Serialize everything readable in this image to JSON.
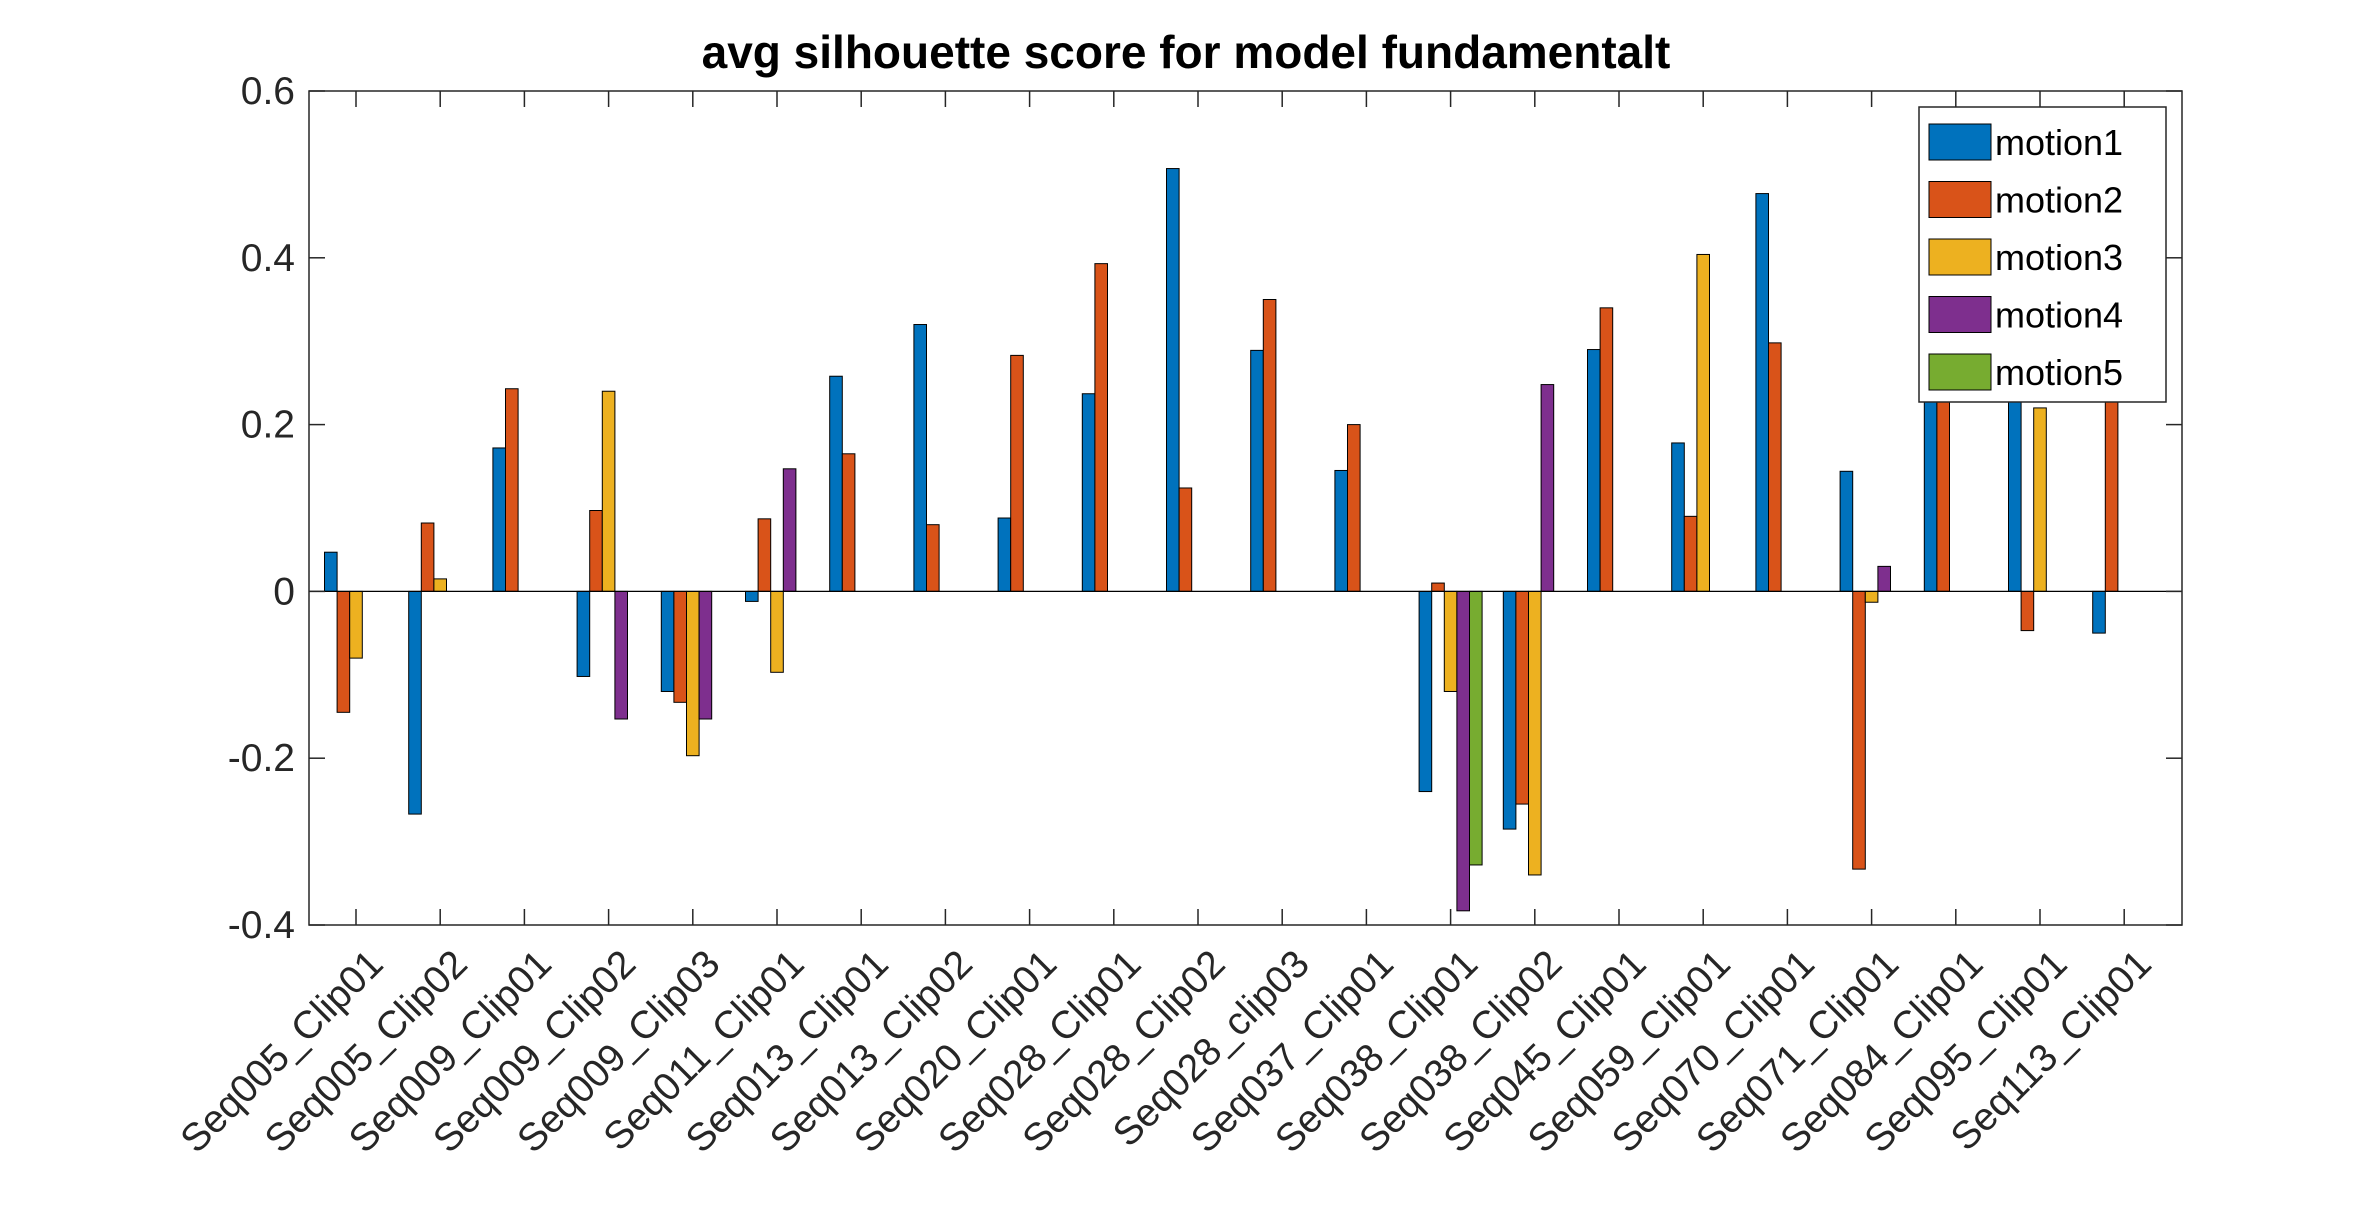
{
  "chart_data": {
    "type": "bar",
    "title": "avg silhouette score for model fundamentalt",
    "xlabel": "",
    "ylabel": "",
    "ylim": [
      -0.4,
      0.6
    ],
    "yticks": [
      -0.4,
      -0.2,
      0,
      0.2,
      0.4,
      0.6
    ],
    "yticklabels": [
      "-0.4",
      "-0.2",
      "0",
      "0.2",
      "0.4",
      "0.6"
    ],
    "categories": [
      "Seq005_Clip01",
      "Seq005_Clip02",
      "Seq009_Clip01",
      "Seq009_Clip02",
      "Seq009_Clip03",
      "Seq011_Clip01",
      "Seq013_Clip01",
      "Seq013_Clip02",
      "Seq020_Clip01",
      "Seq028_Clip01",
      "Seq028_Clip02",
      "Seq028_clip03",
      "Seq037_Clip01",
      "Seq038_Clip01",
      "Seq038_Clip02",
      "Seq045_Clip01",
      "Seq059_Clip01",
      "Seq070_Clip01",
      "Seq071_Clip01",
      "Seq084_Clip01",
      "Seq095_Clip01",
      "Seq113_Clip01"
    ],
    "series": [
      {
        "name": "motion1",
        "color": "#0072BD",
        "values": [
          0.047,
          -0.267,
          0.172,
          -0.102,
          -0.12,
          -0.012,
          0.258,
          0.32,
          0.088,
          0.237,
          0.507,
          0.289,
          0.145,
          -0.24,
          -0.285,
          0.29,
          0.178,
          0.477,
          0.144,
          0.25,
          0.25,
          -0.05
        ]
      },
      {
        "name": "motion2",
        "color": "#D95319",
        "values": [
          -0.145,
          0.082,
          0.243,
          0.097,
          -0.133,
          0.087,
          0.165,
          0.08,
          0.283,
          0.393,
          0.124,
          0.35,
          0.2,
          0.01,
          -0.255,
          0.34,
          0.09,
          0.298,
          -0.333,
          0.25,
          -0.047,
          0.25
        ]
      },
      {
        "name": "motion3",
        "color": "#EDB120",
        "values": [
          -0.08,
          0.015,
          0,
          0.24,
          -0.197,
          -0.097,
          0,
          0,
          0,
          0,
          0,
          0,
          0,
          -0.12,
          -0.34,
          0,
          0.404,
          0,
          -0.013,
          0,
          0.22,
          0
        ]
      },
      {
        "name": "motion4",
        "color": "#7E2F8E",
        "values": [
          0,
          0,
          0,
          -0.153,
          -0.153,
          0.147,
          0,
          0,
          0,
          0,
          0,
          0,
          0,
          -0.383,
          0.248,
          0,
          0,
          0,
          0.03,
          0,
          0,
          0
        ]
      },
      {
        "name": "motion5",
        "color": "#77AC30",
        "values": [
          0,
          0,
          0,
          0,
          0,
          0,
          0,
          0,
          0,
          0,
          0,
          0,
          0,
          -0.328,
          0,
          0,
          0,
          0,
          0,
          0,
          0,
          0
        ]
      }
    ],
    "grid": false,
    "legend_position": "top-right"
  }
}
